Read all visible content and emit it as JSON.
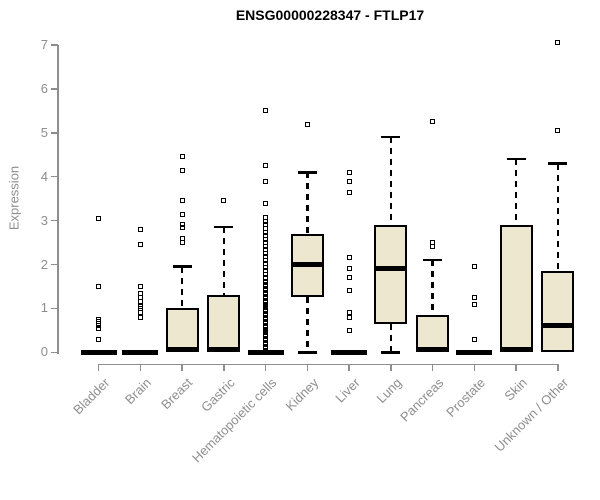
{
  "colors": {
    "box_fill": "#EDE7CF",
    "box_border": "#000000",
    "median": "#000000",
    "axis": "#8e8e8e",
    "title_text": "#000000",
    "background": "#ffffff"
  },
  "chart_data": {
    "type": "boxplot",
    "title": "ENSG00000228347 - FTLP17",
    "xlabel": "",
    "ylabel": "Expression",
    "ylim": [
      0,
      7
    ],
    "yticks": [
      0,
      1,
      2,
      3,
      4,
      5,
      6,
      7
    ],
    "grid": false,
    "legend": false,
    "categories": [
      "Bladder",
      "Brain",
      "Breast",
      "Gastric",
      "Hematopoietic cells",
      "Kidney",
      "Liver",
      "Lung",
      "Pancreas",
      "Prostate",
      "Skin",
      "Unknown / Other"
    ],
    "series": [
      {
        "name": "Bladder",
        "collapsed": true,
        "q1": 0,
        "median": 0,
        "q3": 0,
        "whisker_low": 0,
        "whisker_high": 0,
        "outliers": [
          0.3,
          0.55,
          0.6,
          0.65,
          0.7,
          0.75,
          1.5,
          3.05
        ]
      },
      {
        "name": "Brain",
        "collapsed": true,
        "q1": 0,
        "median": 0,
        "q3": 0,
        "whisker_low": 0,
        "whisker_high": 0,
        "outliers": [
          0.8,
          0.9,
          1.0,
          1.05,
          1.15,
          1.25,
          1.35,
          1.5,
          2.45,
          2.8
        ]
      },
      {
        "name": "Breast",
        "collapsed": false,
        "q1": 0,
        "median": 0,
        "q3": 1.0,
        "whisker_low": 0,
        "whisker_high": 1.95,
        "outliers": [
          2.5,
          2.6,
          2.85,
          2.9,
          3.15,
          3.45,
          4.15,
          4.45
        ]
      },
      {
        "name": "Gastric",
        "collapsed": false,
        "q1": 0,
        "median": 0,
        "q3": 1.3,
        "whisker_low": 0,
        "whisker_high": 2.85,
        "outliers": [
          3.45
        ]
      },
      {
        "name": "Hematopoietic cells",
        "collapsed": true,
        "q1": 0,
        "median": 0,
        "q3": 0,
        "whisker_low": 0,
        "whisker_high": 0,
        "outliers": [
          0.05,
          0.08,
          0.11,
          0.14,
          0.17,
          0.2,
          0.23,
          0.26,
          0.29,
          0.32,
          0.35,
          0.38,
          0.41,
          0.44,
          0.47,
          0.5,
          0.53,
          0.56,
          0.59,
          0.62,
          0.65,
          0.68,
          0.71,
          0.74,
          0.77,
          0.8,
          0.83,
          0.86,
          0.89,
          0.92,
          0.95,
          0.98,
          1.01,
          1.04,
          1.07,
          1.1,
          1.13,
          1.16,
          1.19,
          1.22,
          1.25,
          1.28,
          1.31,
          1.34,
          1.37,
          1.4,
          1.43,
          1.46,
          1.49,
          1.52,
          1.55,
          1.58,
          1.61,
          1.7,
          1.78,
          1.86,
          1.94,
          2.02,
          2.1,
          2.18,
          2.26,
          2.34,
          2.42,
          2.5,
          2.58,
          2.66,
          2.74,
          2.82,
          2.9,
          2.98,
          3.06,
          3.4,
          3.9,
          4.25,
          5.5
        ]
      },
      {
        "name": "Kidney",
        "collapsed": false,
        "q1": 1.25,
        "median": 2.0,
        "q3": 2.7,
        "whisker_low": 0,
        "whisker_high": 4.1,
        "outliers": [
          5.2
        ]
      },
      {
        "name": "Liver",
        "collapsed": true,
        "q1": 0,
        "median": 0,
        "q3": 0,
        "whisker_low": 0,
        "whisker_high": 0,
        "outliers": [
          0.5,
          0.8,
          0.9,
          1.4,
          1.7,
          1.9,
          2.15,
          3.65,
          3.9,
          4.1
        ]
      },
      {
        "name": "Lung",
        "collapsed": false,
        "q1": 0.65,
        "median": 1.9,
        "q3": 2.9,
        "whisker_low": 0,
        "whisker_high": 4.9,
        "outliers": []
      },
      {
        "name": "Pancreas",
        "collapsed": false,
        "q1": 0,
        "median": 0,
        "q3": 0.85,
        "whisker_low": 0,
        "whisker_high": 2.1,
        "outliers": [
          2.4,
          2.5,
          5.25
        ]
      },
      {
        "name": "Prostate",
        "collapsed": true,
        "q1": 0,
        "median": 0,
        "q3": 0,
        "whisker_low": 0,
        "whisker_high": 0,
        "outliers": [
          0.3,
          1.1,
          1.25,
          1.95
        ]
      },
      {
        "name": "Skin",
        "collapsed": false,
        "q1": 0,
        "median": 0.05,
        "q3": 2.9,
        "whisker_low": 0,
        "whisker_high": 4.4,
        "outliers": []
      },
      {
        "name": "Unknown / Other",
        "collapsed": false,
        "q1": 0,
        "median": 0.6,
        "q3": 1.85,
        "whisker_low": 0,
        "whisker_high": 4.3,
        "outliers": [
          5.05,
          7.05
        ]
      }
    ]
  }
}
